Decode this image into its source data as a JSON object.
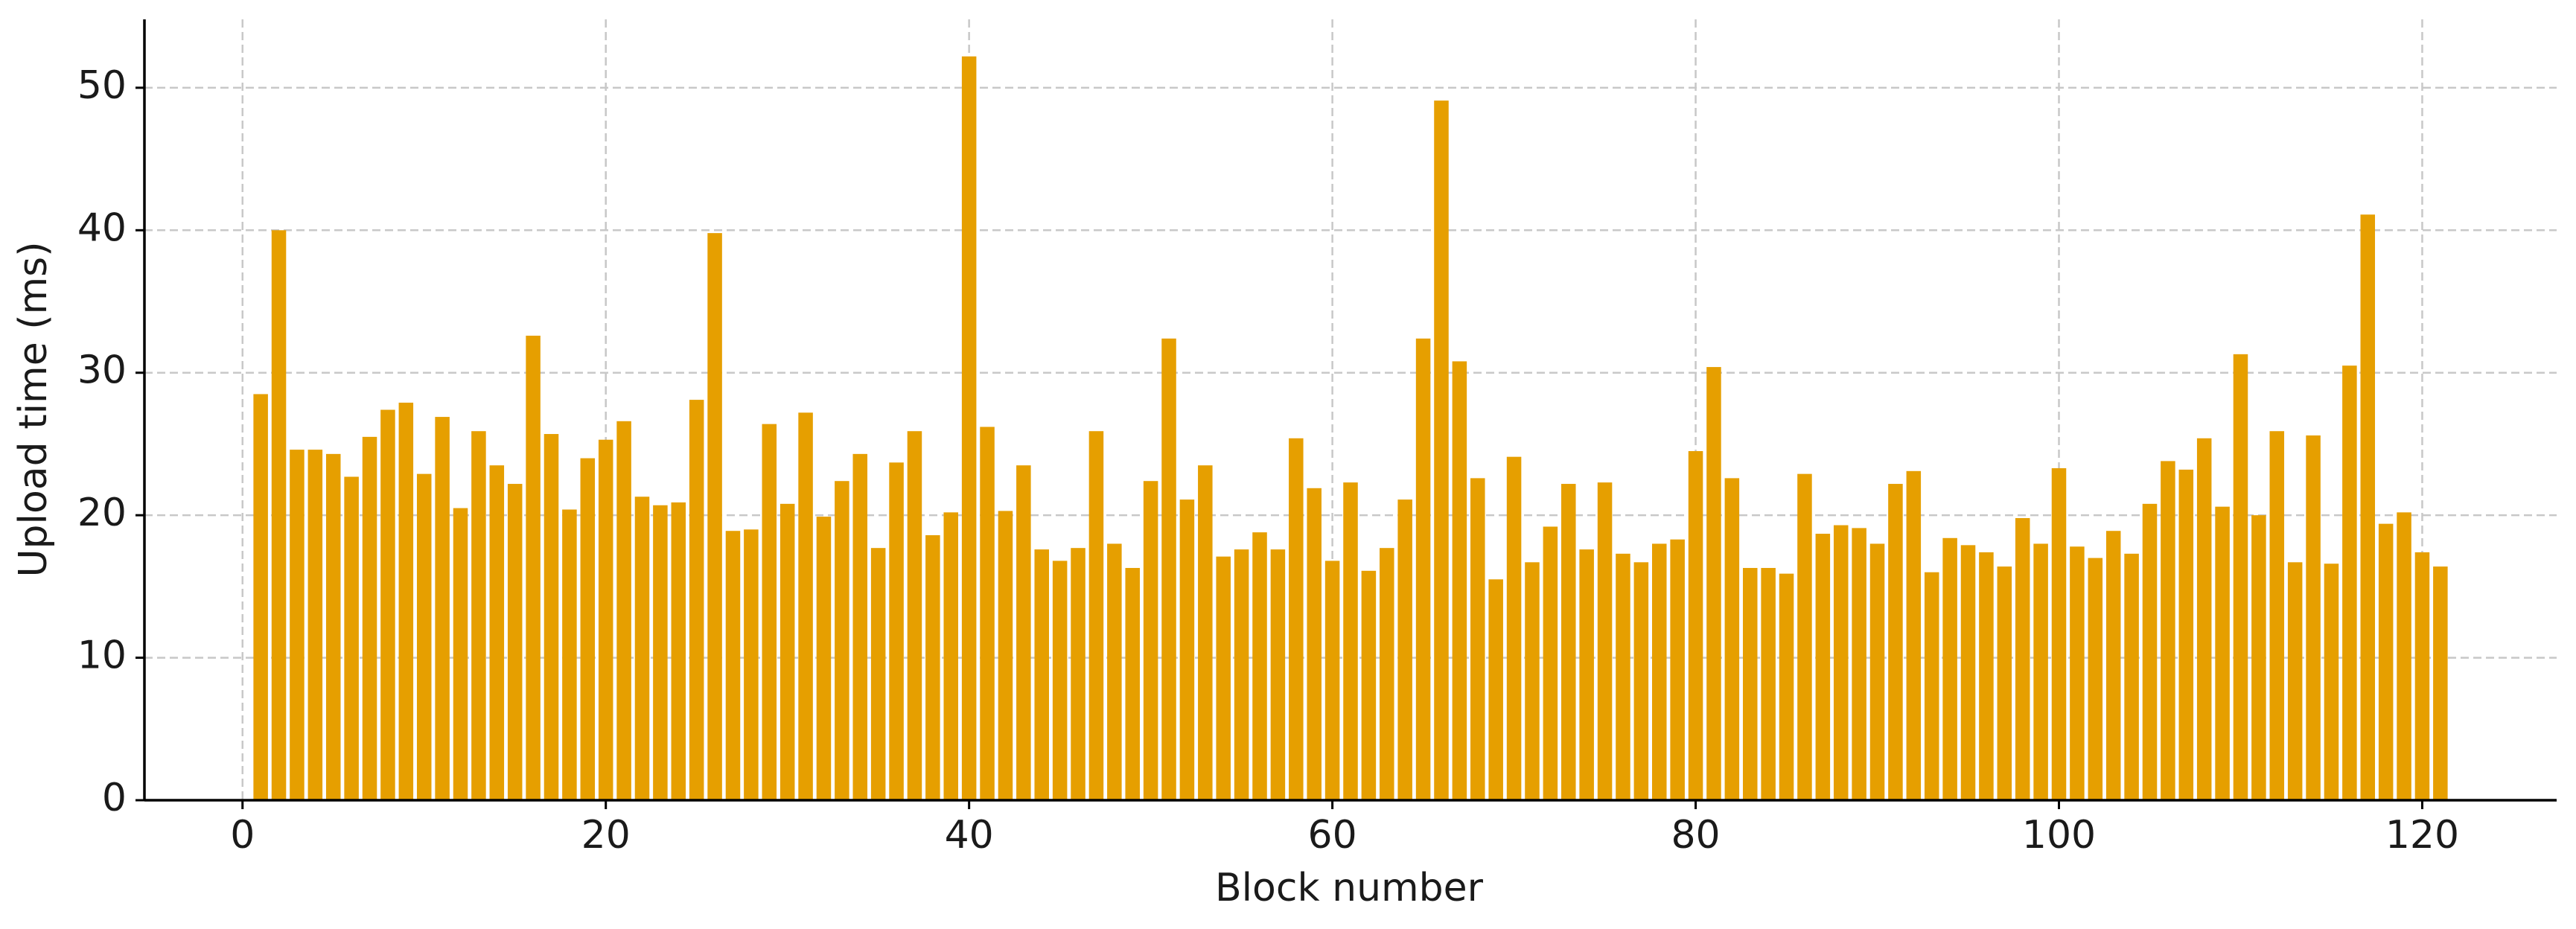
{
  "chart_data": {
    "type": "bar",
    "xlabel": "Block number",
    "ylabel": "Upload time (ms)",
    "x": [
      1,
      2,
      3,
      4,
      5,
      6,
      7,
      8,
      9,
      10,
      11,
      12,
      13,
      14,
      15,
      16,
      17,
      18,
      19,
      20,
      21,
      22,
      23,
      24,
      25,
      26,
      27,
      28,
      29,
      30,
      31,
      32,
      33,
      34,
      35,
      36,
      37,
      38,
      39,
      40,
      41,
      42,
      43,
      44,
      45,
      46,
      47,
      48,
      49,
      50,
      51,
      52,
      53,
      54,
      55,
      56,
      57,
      58,
      59,
      60,
      61,
      62,
      63,
      64,
      65,
      66,
      67,
      68,
      69,
      70,
      71,
      72,
      73,
      74,
      75,
      76,
      77,
      78,
      79,
      80,
      81,
      82,
      83,
      84,
      85,
      86,
      87,
      88,
      89,
      90,
      91,
      92,
      93,
      94,
      95,
      96,
      97,
      98,
      99,
      100,
      101,
      102,
      103,
      104,
      105,
      106,
      107,
      108,
      109,
      110,
      111,
      112,
      113,
      114,
      115,
      116,
      117,
      118,
      119,
      120,
      121
    ],
    "values": [
      28.5,
      40,
      24.6,
      24.6,
      24.3,
      22.7,
      25.5,
      27.4,
      27.9,
      22.9,
      26.9,
      20.5,
      25.9,
      23.5,
      22.2,
      32.6,
      25.7,
      20.4,
      24,
      25.3,
      26.6,
      21.3,
      20.7,
      20.9,
      28.1,
      39.8,
      18.9,
      19,
      26.4,
      20.8,
      27.2,
      19.9,
      22.4,
      24.3,
      17.7,
      23.7,
      25.9,
      18.6,
      20.2,
      52.2,
      26.2,
      20.3,
      23.5,
      17.6,
      16.8,
      17.7,
      25.9,
      18,
      16.3,
      22.4,
      32.4,
      21.1,
      23.5,
      17.1,
      17.6,
      18.8,
      17.6,
      25.4,
      21.9,
      16.8,
      22.3,
      16.1,
      17.7,
      21.1,
      32.4,
      49.1,
      30.8,
      22.6,
      15.5,
      24.1,
      16.7,
      19.2,
      22.2,
      17.6,
      22.3,
      17.3,
      16.7,
      18,
      18.3,
      24.5,
      30.4,
      22.6,
      16.3,
      16.3,
      15.9,
      22.9,
      18.7,
      19.3,
      19.1,
      18,
      22.2,
      23.1,
      16,
      18.4,
      17.9,
      17.4,
      16.4,
      19.8,
      18,
      23.3,
      17.8,
      17,
      18.9,
      17.3,
      20.8,
      23.8,
      23.2,
      25.4,
      20.6,
      31.3,
      20,
      25.9,
      16.7,
      25.6,
      16.6,
      30.5,
      41.1,
      19.4,
      20.2,
      17.4,
      16.4
    ],
    "color": "#e69f00",
    "xlim": [
      -5.4,
      127.4
    ],
    "ylim": [
      0,
      54.8
    ],
    "xticks": [
      0,
      20,
      40,
      60,
      80,
      100,
      120
    ],
    "yticks": [
      0,
      10,
      20,
      30,
      40,
      50
    ],
    "grid": true
  }
}
